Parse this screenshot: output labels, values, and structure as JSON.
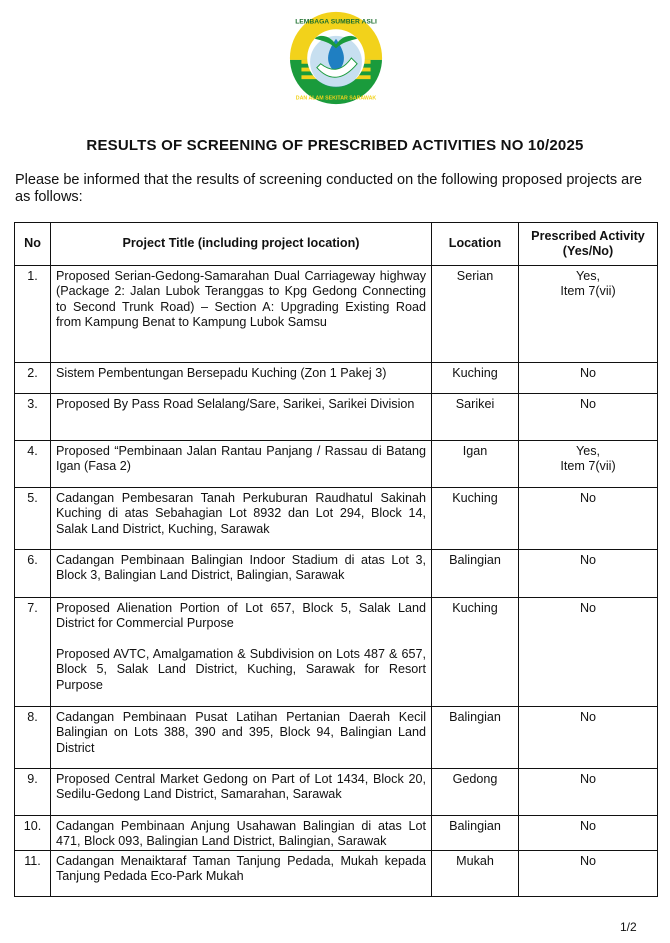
{
  "logo": {
    "text_top": "LEMBAGA SUMBER ASLI",
    "text_bottom": "DAN ALAM SEKITAR SARAWAK",
    "colors": {
      "yellow": "#f2d21b",
      "green": "#1a9b3c",
      "blue": "#1f7fc2"
    }
  },
  "title": "RESULTS OF SCREENING OF PRESCRIBED ACTIVITIES NO  10/2025",
  "intro": "Please be informed that the results of screening conducted on the following proposed projects are as follows:",
  "table": {
    "headers": [
      "No",
      "Project Title (including project location)",
      "Location",
      "Prescribed Activity (Yes/No)"
    ],
    "rows": [
      {
        "no": "1.",
        "title": "Proposed Serian-Gedong-Samarahan Dual Carriageway highway (Package 2: Jalan Lubok Teranggas to Kpg Gedong Connecting to Second Trunk Road) – Section A: Upgrading Existing Road from Kampung Benat to Kampung Lubok Samsu",
        "location": "Serian",
        "activity": "Yes,",
        "activity2": "Item 7(vii)"
      },
      {
        "no": "2.",
        "title": "Sistem Pembentungan Bersepadu Kuching (Zon 1 Pakej 3)",
        "location": "Kuching",
        "activity": "No"
      },
      {
        "no": "3.",
        "title": "Proposed By Pass Road Selalang/Sare, Sarikei, Sarikei Division",
        "location": "Sarikei",
        "activity": "No"
      },
      {
        "no": "4.",
        "title": "Proposed “Pembinaan Jalan Rantau Panjang / Rassau di Batang Igan (Fasa 2)",
        "location": "Igan",
        "activity": "Yes,",
        "activity2": "Item 7(vii)"
      },
      {
        "no": "5.",
        "title": "Cadangan Pembesaran Tanah Perkuburan Raudhatul Sakinah Kuching di atas Sebahagian Lot 8932 dan Lot 294, Block 14, Salak Land District, Kuching, Sarawak",
        "location": "Kuching",
        "activity": "No"
      },
      {
        "no": "6.",
        "title": "Cadangan Pembinaan Balingian Indoor Stadium di atas Lot 3, Block 3, Balingian Land District, Balingian, Sarawak",
        "location": "Balingian",
        "activity": "No"
      },
      {
        "no": "7.",
        "title": "Proposed Alienation Portion of Lot 657, Block 5, Salak Land District for Commercial Purpose",
        "title2": "Proposed AVTC, Amalgamation & Subdivision on Lots 487 & 657, Block 5, Salak Land District, Kuching, Sarawak for Resort Purpose",
        "location": "Kuching",
        "activity": "No"
      },
      {
        "no": "8.",
        "title": "Cadangan Pembinaan Pusat Latihan Pertanian Daerah Kecil Balingian on Lots 388, 390 and 395, Block 94, Balingian Land District",
        "location": "Balingian",
        "activity": "No"
      },
      {
        "no": "9.",
        "title": "Proposed Central Market Gedong on Part of Lot 1434, Block 20, Sedilu-Gedong Land District, Samarahan, Sarawak",
        "location": "Gedong",
        "activity": "No"
      },
      {
        "no": "10.",
        "title": "Cadangan Pembinaan Anjung Usahawan Balingian di atas Lot 471, Block 093, Balingian Land District, Balingian, Sarawak",
        "location": "Balingian",
        "activity": "No"
      },
      {
        "no": "11.",
        "title": "Cadangan Menaiktaraf Taman Tanjung Pedada, Mukah kepada Tanjung Pedada Eco-Park Mukah",
        "location": "Mukah",
        "activity": "No"
      }
    ]
  },
  "page_number": "1/2"
}
